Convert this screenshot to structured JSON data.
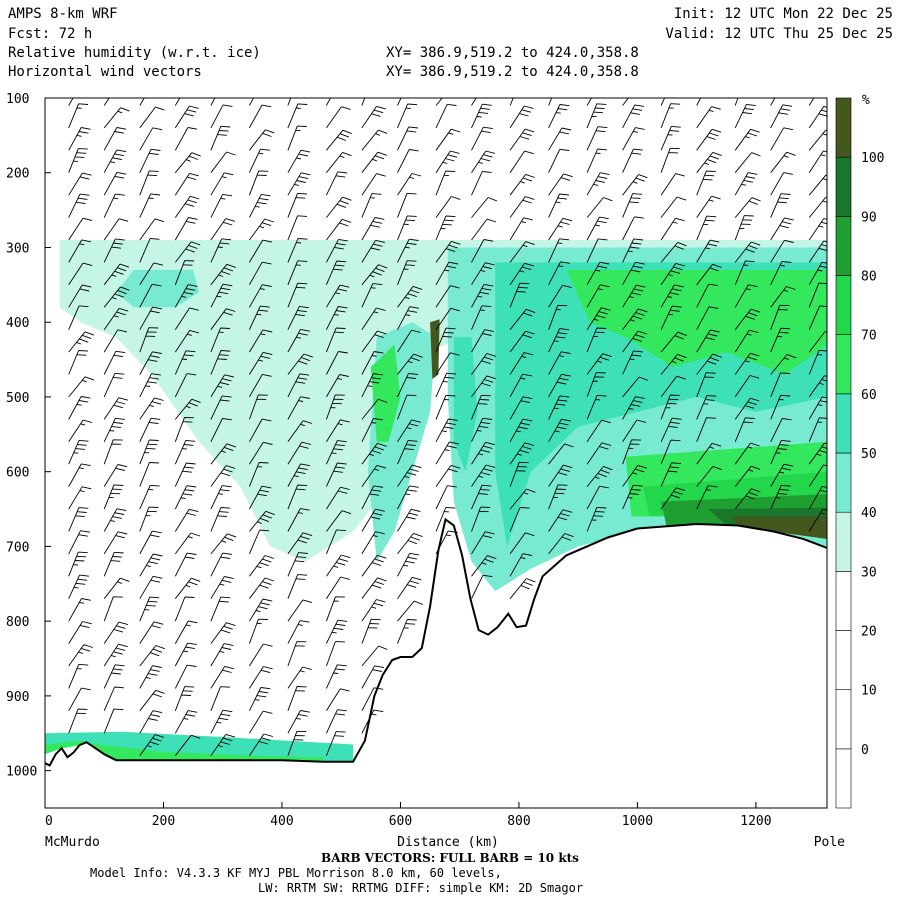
{
  "header": {
    "model": "AMPS 8-km WRF",
    "fcst": "Fcst:   72 h",
    "field1": "Relative humidity (w.r.t. ice)",
    "field2": "Horizontal wind vectors",
    "init": "Init: 12 UTC Mon 22 Dec 25",
    "valid": "Valid: 12 UTC Thu 25 Dec 25",
    "xy1": "XY= 386.9,519.2 to 424.0,358.8",
    "xy2": "XY= 386.9,519.2 to 424.0,358.8"
  },
  "footer": {
    "barb": "BARB VECTORS:  FULL BARB = 10 kts",
    "model_info": "Model Info: V4.3.3   KF      MYJ PBL  Morrison          8.0 km,  60 levels,",
    "model_info2": "LW: RRTM SW: RRTMG   DIFF: simple KM: 2D Smagor"
  },
  "chart_data": {
    "type": "heatmap",
    "title": "Relative humidity (w.r.t. ice)",
    "xlabel": "Distance (km)",
    "ylabel": "",
    "xlim": [
      0,
      1320
    ],
    "ylim": [
      1050,
      100
    ],
    "x_ticks": [
      0,
      200,
      400,
      600,
      800,
      1000,
      1200
    ],
    "y_ticks": [
      100,
      200,
      300,
      400,
      500,
      600,
      700,
      800,
      900,
      1000
    ],
    "x_endpoint_labels": {
      "left": "McMurdo",
      "right": "Pole"
    },
    "colorbar": {
      "unit": "%",
      "levels": [
        0,
        10,
        20,
        30,
        40,
        50,
        60,
        70,
        80,
        90,
        100
      ],
      "colors": [
        "#ffffff",
        "#ffffff",
        "#ffffff",
        "#ffffff",
        "#c4f5e6",
        "#78ead2",
        "#3ee0b8",
        "#34e85e",
        "#22d84a",
        "#1f9f31",
        "#18772a",
        "#44571d"
      ]
    },
    "terrain": [
      [
        0,
        990
      ],
      [
        8,
        993
      ],
      [
        18,
        978
      ],
      [
        28,
        970
      ],
      [
        38,
        982
      ],
      [
        48,
        976
      ],
      [
        58,
        966
      ],
      [
        70,
        962
      ],
      [
        85,
        970
      ],
      [
        100,
        978
      ],
      [
        120,
        986
      ],
      [
        200,
        986
      ],
      [
        300,
        986
      ],
      [
        400,
        986
      ],
      [
        470,
        988
      ],
      [
        520,
        988
      ],
      [
        540,
        960
      ],
      [
        556,
        900
      ],
      [
        570,
        872
      ],
      [
        586,
        852
      ],
      [
        600,
        848
      ],
      [
        620,
        848
      ],
      [
        636,
        836
      ],
      [
        650,
        780
      ],
      [
        664,
        705
      ],
      [
        676,
        664
      ],
      [
        690,
        672
      ],
      [
        704,
        712
      ],
      [
        718,
        770
      ],
      [
        732,
        812
      ],
      [
        748,
        818
      ],
      [
        764,
        808
      ],
      [
        782,
        790
      ],
      [
        796,
        808
      ],
      [
        812,
        806
      ],
      [
        826,
        770
      ],
      [
        840,
        740
      ],
      [
        880,
        712
      ],
      [
        950,
        688
      ],
      [
        1000,
        676
      ],
      [
        1100,
        670
      ],
      [
        1170,
        672
      ],
      [
        1230,
        680
      ],
      [
        1280,
        690
      ],
      [
        1320,
        702
      ]
    ],
    "rh_patches": [
      {
        "rh": 35,
        "poly": [
          [
            25,
            290
          ],
          [
            1320,
            290
          ],
          [
            1320,
            320
          ],
          [
            780,
            320
          ],
          [
            760,
            360
          ],
          [
            740,
            400
          ],
          [
            700,
            420
          ],
          [
            650,
            440
          ],
          [
            620,
            500
          ],
          [
            580,
            620
          ],
          [
            520,
            680
          ],
          [
            440,
            720
          ],
          [
            380,
            700
          ],
          [
            330,
            620
          ],
          [
            260,
            560
          ],
          [
            180,
            470
          ],
          [
            120,
            420
          ],
          [
            60,
            400
          ],
          [
            25,
            380
          ]
        ]
      },
      {
        "rh": 45,
        "poly": [
          [
            680,
            300
          ],
          [
            1320,
            300
          ],
          [
            1320,
            700
          ],
          [
            1260,
            690
          ],
          [
            1150,
            672
          ],
          [
            1000,
            680
          ],
          [
            900,
            700
          ],
          [
            820,
            730
          ],
          [
            760,
            760
          ],
          [
            720,
            720
          ],
          [
            690,
            640
          ],
          [
            680,
            500
          ]
        ]
      },
      {
        "rh": 45,
        "poly": [
          [
            150,
            330
          ],
          [
            250,
            330
          ],
          [
            260,
            360
          ],
          [
            220,
            380
          ],
          [
            150,
            380
          ],
          [
            120,
            360
          ]
        ]
      },
      {
        "rh": 45,
        "poly": [
          [
            560,
            420
          ],
          [
            620,
            400
          ],
          [
            660,
            420
          ],
          [
            650,
            520
          ],
          [
            620,
            600
          ],
          [
            590,
            680
          ],
          [
            560,
            720
          ],
          [
            545,
            600
          ]
        ]
      },
      {
        "rh": 55,
        "poly": [
          [
            760,
            320
          ],
          [
            1320,
            320
          ],
          [
            1320,
            500
          ],
          [
            1200,
            520
          ],
          [
            1100,
            500
          ],
          [
            1000,
            520
          ],
          [
            900,
            540
          ],
          [
            820,
            600
          ],
          [
            780,
            700
          ],
          [
            760,
            600
          ]
        ]
      },
      {
        "rh": 55,
        "poly": [
          [
            690,
            420
          ],
          [
            720,
            420
          ],
          [
            730,
            520
          ],
          [
            710,
            600
          ],
          [
            690,
            560
          ]
        ]
      },
      {
        "rh": 65,
        "poly": [
          [
            880,
            330
          ],
          [
            1320,
            330
          ],
          [
            1320,
            430
          ],
          [
            1250,
            470
          ],
          [
            1150,
            440
          ],
          [
            1060,
            460
          ],
          [
            980,
            420
          ],
          [
            920,
            400
          ]
        ]
      },
      {
        "rh": 65,
        "poly": [
          [
            980,
            580
          ],
          [
            1320,
            560
          ],
          [
            1320,
            660
          ],
          [
            1250,
            650
          ],
          [
            1150,
            645
          ],
          [
            1050,
            660
          ],
          [
            990,
            660
          ]
        ]
      },
      {
        "rh": 65,
        "poly": [
          [
            550,
            460
          ],
          [
            590,
            430
          ],
          [
            600,
            500
          ],
          [
            580,
            560
          ],
          [
            560,
            560
          ]
        ]
      },
      {
        "rh": 75,
        "poly": [
          [
            1010,
            620
          ],
          [
            1320,
            600
          ],
          [
            1320,
            655
          ],
          [
            1200,
            645
          ],
          [
            1080,
            655
          ],
          [
            1020,
            660
          ]
        ]
      },
      {
        "rh": 85,
        "poly": [
          [
            1040,
            640
          ],
          [
            1320,
            630
          ],
          [
            1320,
            690
          ],
          [
            1230,
            680
          ],
          [
            1120,
            672
          ],
          [
            1050,
            676
          ]
        ]
      },
      {
        "rh": 95,
        "poly": [
          [
            1120,
            650
          ],
          [
            1320,
            648
          ],
          [
            1320,
            690
          ],
          [
            1230,
            680
          ],
          [
            1150,
            672
          ]
        ]
      },
      {
        "rh": 105,
        "poly": [
          [
            1160,
            660
          ],
          [
            1320,
            660
          ],
          [
            1320,
            690
          ],
          [
            1230,
            680
          ],
          [
            1170,
            672
          ]
        ]
      },
      {
        "rh": 105,
        "poly": [
          [
            650,
            400
          ],
          [
            666,
            396
          ],
          [
            664,
            470
          ],
          [
            654,
            476
          ]
        ]
      },
      {
        "rh": 55,
        "poly": [
          [
            0,
            950
          ],
          [
            130,
            948
          ],
          [
            300,
            955
          ],
          [
            520,
            965
          ],
          [
            520,
            988
          ],
          [
            470,
            988
          ],
          [
            120,
            986
          ],
          [
            85,
            970
          ],
          [
            58,
            966
          ],
          [
            28,
            970
          ],
          [
            0,
            975
          ]
        ]
      },
      {
        "rh": 65,
        "poly": [
          [
            0,
            965
          ],
          [
            60,
            960
          ],
          [
            100,
            966
          ],
          [
            200,
            975
          ],
          [
            350,
            980
          ],
          [
            470,
            982
          ],
          [
            470,
            988
          ],
          [
            120,
            986
          ],
          [
            85,
            970
          ],
          [
            58,
            966
          ],
          [
            28,
            970
          ],
          [
            0,
            978
          ]
        ]
      }
    ],
    "barb_columns_km": [
      40,
      100,
      160,
      220,
      280,
      345,
      410,
      475,
      535,
      595,
      660,
      720,
      785,
      850,
      915,
      975,
      1040,
      1100,
      1165,
      1225,
      1290
    ],
    "barb_levels_hpa": [
      110,
      140,
      170,
      200,
      230,
      260,
      290,
      320,
      350,
      380,
      410,
      440,
      470,
      500,
      530,
      560,
      590,
      620,
      650,
      680,
      710,
      740,
      770,
      800,
      830,
      860,
      890,
      920,
      950,
      980
    ],
    "barb_direction_deg": [
      20,
      40
    ],
    "barb_speed_kts": [
      10,
      40
    ]
  }
}
